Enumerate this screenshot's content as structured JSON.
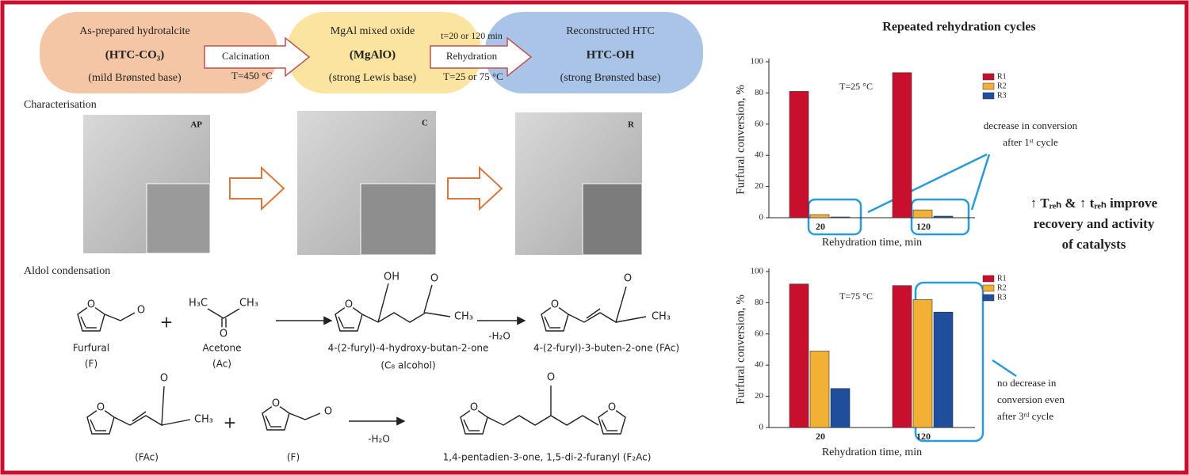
{
  "flow": {
    "steps": [
      {
        "lines": [
          "As-prepared hydrotalcite",
          "(HTC-CO₃)",
          "(mild Brønsted base)"
        ]
      },
      {
        "lines": [
          "MgAl mixed oxide",
          "(MgAlO)",
          "(strong Lewis base)"
        ]
      },
      {
        "lines": [
          "Reconstructed HTC",
          "HTC-OH",
          "(strong Brønsted base)"
        ]
      }
    ],
    "arrows": [
      {
        "label": "Calcination",
        "below": "T=450 °C"
      },
      {
        "above": "t=20 or 120 min",
        "label": "Rehydration",
        "below": "T=25 or 75 °C"
      }
    ]
  },
  "characterisation": {
    "title": "Characterisation",
    "panels": [
      "AP",
      "C",
      "R"
    ]
  },
  "aldol": {
    "title": "Aldol condensation",
    "labels": [
      "Furfural",
      "(F)",
      "+",
      "Acetone",
      "(Ac)",
      "4-(2-furyl)-4-hydroxy-butan-2-one",
      "(C₈ alcohol)",
      "-H₂O",
      "4-(2-furyl)-3-buten-2-one (FAc)",
      "(FAc)",
      "+",
      "(F)",
      "-H₂O",
      "1,4-pentadien-3-one, 1,5-di-2-furanyl (F₂Ac)"
    ],
    "atoms": [
      "O",
      "O",
      "H₃C",
      "CH₃",
      "O",
      "O",
      "OH",
      "O",
      "CH₃",
      "O",
      "O",
      "CH₃",
      "O",
      "O",
      "CH₃",
      "O",
      "O",
      "O",
      "O",
      "O"
    ]
  },
  "charts_title": "Repeated rehydration cycles",
  "charts": [
    {
      "type": "bar",
      "annotation": "T=25 °C",
      "xlabel": "Rehydration time, min",
      "ylabel": "Furfural conversion, %",
      "categories": [
        "20",
        "120"
      ],
      "ylim": [
        0,
        100
      ],
      "yticks": [
        0,
        20,
        40,
        60,
        80,
        100
      ],
      "series": [
        {
          "name": "R1",
          "color": "#c8102e",
          "values": [
            81,
            93
          ]
        },
        {
          "name": "R2",
          "color": "#f2b134",
          "values": [
            2,
            5
          ]
        },
        {
          "name": "R3",
          "color": "#1f4e9c",
          "values": [
            0.5,
            1
          ]
        }
      ],
      "note": [
        "decrease in conversion",
        "after 1ˢᵗ cycle"
      ]
    },
    {
      "type": "bar",
      "annotation": "T=75 °C",
      "xlabel": "Rehydration time, min",
      "ylabel": "Furfural conversion, %",
      "categories": [
        "20",
        "120"
      ],
      "ylim": [
        0,
        100
      ],
      "yticks": [
        0,
        20,
        40,
        60,
        80,
        100
      ],
      "series": [
        {
          "name": "R1",
          "color": "#c8102e",
          "values": [
            92,
            91
          ]
        },
        {
          "name": "R2",
          "color": "#f2b134",
          "values": [
            49,
            82
          ]
        },
        {
          "name": "R3",
          "color": "#1f4e9c",
          "values": [
            25,
            74
          ]
        }
      ],
      "note": [
        "no decrease in",
        "conversion even",
        "after 3ʳᵈ cycle"
      ]
    }
  ],
  "conclusion": [
    "↑ Tᵣₑₕ & ↑ tᵣₑₕ improve",
    "recovery and activity",
    "of catalysts"
  ]
}
